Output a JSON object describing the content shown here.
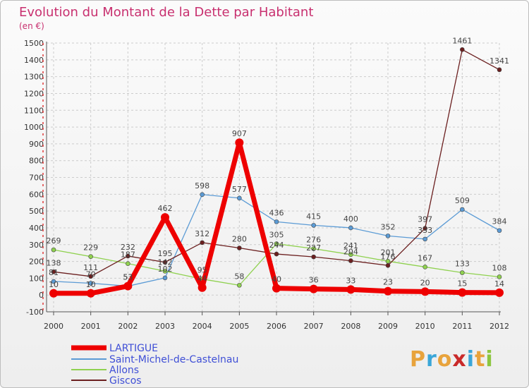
{
  "chart_data": {
    "type": "line",
    "title": "Evolution du Montant de la Dette par Habitant",
    "subtitle": "(en €)",
    "x": [
      "2000",
      "2001",
      "2002",
      "2003",
      "2004",
      "2005",
      "2006",
      "2007",
      "2008",
      "2009",
      "2010",
      "2011",
      "2012"
    ],
    "ylim": [
      -100,
      1500
    ],
    "yticks": [
      -100,
      0,
      100,
      200,
      300,
      400,
      500,
      600,
      700,
      800,
      900,
      1000,
      1100,
      1200,
      1300,
      1400,
      1500
    ],
    "grid": true,
    "legend": "bottom-left",
    "series": [
      {
        "name": "LARTIGUE",
        "color": "#ee0000",
        "width": 7,
        "radius": 6,
        "values": [
          10,
          10,
          53,
          462,
          44,
          907,
          40,
          36,
          33,
          23,
          20,
          15,
          14
        ]
      },
      {
        "name": "Saint-Michel-de-Castelnau",
        "color": "#5b9bd5",
        "width": 1.3,
        "radius": 3,
        "values": [
          81,
          70,
          53,
          102,
          598,
          577,
          436,
          415,
          400,
          352,
          333,
          509,
          384
        ]
      },
      {
        "name": "Allons",
        "color": "#8fd14f",
        "width": 1.3,
        "radius": 3,
        "values": [
          269,
          229,
          187,
          142,
          95,
          58,
          305,
          276,
          241,
          201,
          167,
          133,
          108
        ]
      },
      {
        "name": "Giscos",
        "color": "#6b1f1f",
        "width": 1.3,
        "radius": 3,
        "values": [
          138,
          111,
          232,
          195,
          312,
          280,
          244,
          227,
          204,
          176,
          397,
          1461,
          1341
        ]
      }
    ]
  },
  "brand": {
    "letters": [
      "P",
      "r",
      "o",
      "x",
      "i",
      "t",
      "i"
    ],
    "colors": [
      "#e8a33c",
      "#3aa6d8",
      "#e8a33c",
      "#c92a2a",
      "#3aa6d8",
      "#e8a33c",
      "#8cc63f"
    ]
  }
}
